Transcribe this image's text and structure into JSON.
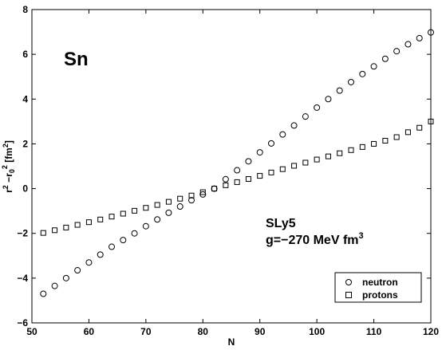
{
  "chart_data": {
    "type": "scatter",
    "title": "",
    "xlabel": "N",
    "ylabel_parts": {
      "r": "r",
      "sup1": "2",
      "dash": " −r",
      "sub": "0",
      "sup2": "2",
      "unit": " [fm",
      "unit_sup": "2",
      "unit_close": "]"
    },
    "xlim": [
      50,
      120
    ],
    "ylim": [
      -6,
      8
    ],
    "xticks": [
      50,
      60,
      70,
      80,
      90,
      100,
      110,
      120
    ],
    "yticks": [
      -6,
      -4,
      -2,
      0,
      2,
      4,
      6,
      8
    ],
    "grid": false,
    "legend_position": "bottom-right",
    "annotations": {
      "element": "Sn",
      "force": "SLy5",
      "g_text": "g=−270 MeV fm",
      "g_sup": "3"
    },
    "series": [
      {
        "name": "neutron",
        "marker": "circle",
        "x": [
          52,
          54,
          56,
          58,
          60,
          62,
          64,
          66,
          68,
          70,
          72,
          74,
          76,
          78,
          80,
          82,
          84,
          86,
          88,
          90,
          92,
          94,
          96,
          98,
          100,
          102,
          104,
          106,
          108,
          110,
          112,
          114,
          116,
          118,
          120
        ],
        "y": [
          -4.7,
          -4.35,
          -4.0,
          -3.65,
          -3.3,
          -2.95,
          -2.6,
          -2.3,
          -2.0,
          -1.68,
          -1.38,
          -1.08,
          -0.8,
          -0.52,
          -0.26,
          0.0,
          0.42,
          0.82,
          1.22,
          1.62,
          2.02,
          2.42,
          2.82,
          3.22,
          3.62,
          4.0,
          4.38,
          4.76,
          5.12,
          5.46,
          5.8,
          6.14,
          6.45,
          6.72,
          6.98
        ]
      },
      {
        "name": "protons",
        "marker": "square",
        "x": [
          52,
          54,
          56,
          58,
          60,
          62,
          64,
          66,
          68,
          70,
          72,
          74,
          76,
          78,
          80,
          82,
          84,
          86,
          88,
          90,
          92,
          94,
          96,
          98,
          100,
          102,
          104,
          106,
          108,
          110,
          112,
          114,
          116,
          118,
          120
        ],
        "y": [
          -1.98,
          -1.86,
          -1.74,
          -1.62,
          -1.5,
          -1.38,
          -1.25,
          -1.12,
          -0.99,
          -0.86,
          -0.73,
          -0.59,
          -0.45,
          -0.31,
          -0.16,
          0.0,
          0.15,
          0.29,
          0.43,
          0.57,
          0.72,
          0.87,
          1.02,
          1.16,
          1.3,
          1.44,
          1.58,
          1.72,
          1.86,
          2.0,
          2.14,
          2.3,
          2.52,
          2.72,
          3.0
        ]
      }
    ]
  }
}
